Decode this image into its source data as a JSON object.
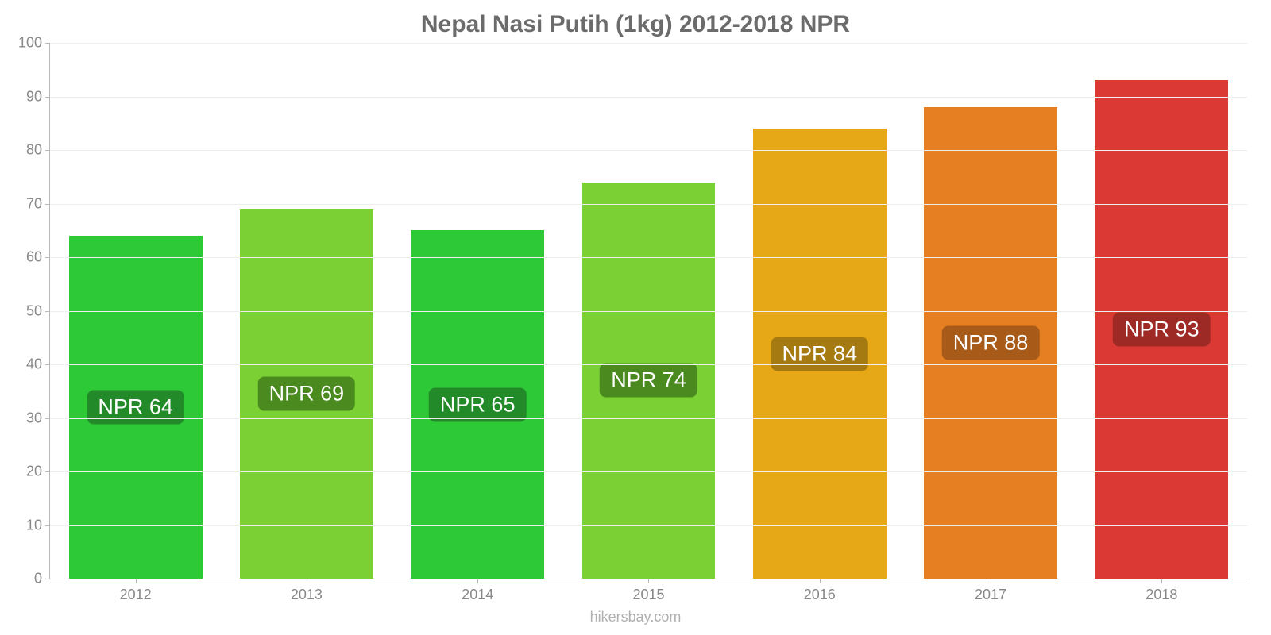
{
  "chart": {
    "type": "bar",
    "title": "Nepal Nasi Putih (1kg) 2012-2018 NPR",
    "title_color": "#6b6b6b",
    "title_fontsize": 30,
    "background_color": "#ffffff",
    "grid_color": "#eeeeee",
    "axis_color": "#b8b8b8",
    "tick_label_color": "#888888",
    "tick_fontsize": 18,
    "ylim": [
      0,
      100
    ],
    "ytick_step": 10,
    "yticks": [
      0,
      10,
      20,
      30,
      40,
      50,
      60,
      70,
      80,
      90,
      100
    ],
    "categories": [
      "2012",
      "2013",
      "2014",
      "2015",
      "2016",
      "2017",
      "2018"
    ],
    "values": [
      64,
      69,
      65,
      74,
      84,
      88,
      93
    ],
    "value_labels": [
      "NPR 64",
      "NPR 69",
      "NPR 65",
      "NPR 74",
      "NPR 84",
      "NPR 88",
      "NPR 93"
    ],
    "bar_colors": [
      "#2dc937",
      "#7bd034",
      "#2dc937",
      "#7bd034",
      "#e6a817",
      "#e67e22",
      "#db3a34"
    ],
    "badge_colors": [
      "#228a29",
      "#4a8a1f",
      "#228a29",
      "#4a8a1f",
      "#a57a11",
      "#a85a18",
      "#9e2a26"
    ],
    "badge_text_color": "#ffffff",
    "badge_fontsize": 27,
    "bar_width_pct": 78,
    "source_text": "hikersbay.com",
    "source_color": "#b0b0b0",
    "source_fontsize": 18
  }
}
